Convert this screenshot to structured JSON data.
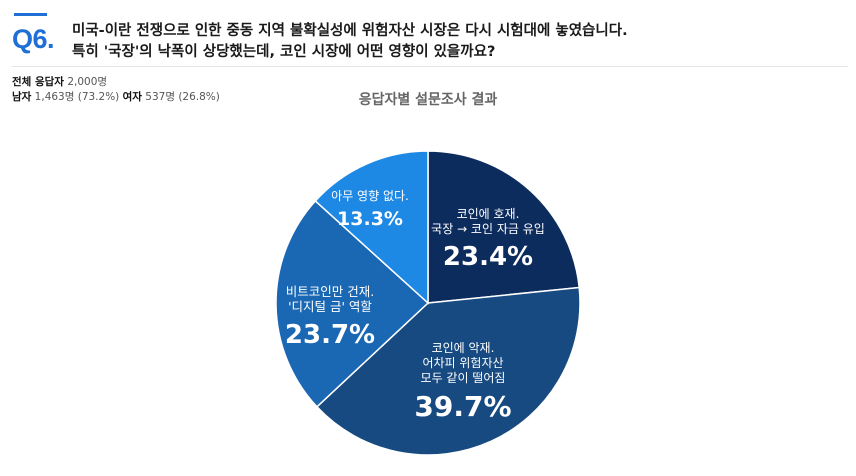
{
  "question": {
    "number": "Q6.",
    "line1": "미국-이란 전쟁으로 인한 중동 지역 불확실성에 위험자산 시장은 다시 시험대에 놓였습니다.",
    "line2": "특히 '국장'의 낙폭이 상당했는데, 코인 시장에 어떤 영향이 있을까요?"
  },
  "respondents": {
    "total_label": "전체 응답자",
    "total_value": "2,000명",
    "male_label": "남자",
    "male_value": "1,463명 (73.2%)",
    "female_label": "여자",
    "female_value": "537명 (26.8%)"
  },
  "chart_data": {
    "type": "pie",
    "title": "응답자별 설문조사 결과",
    "slices": [
      {
        "label_lines": [
          "코인에 호재.",
          "국장 → 코인 자금 유입"
        ],
        "value": 23.4,
        "value_text": "23.4%",
        "color": "#0d2c5e"
      },
      {
        "label_lines": [
          "코인에 악재.",
          "어차피 위험자산",
          "모두 같이 떨어짐"
        ],
        "value": 39.7,
        "value_text": "39.7%",
        "color": "#164a80"
      },
      {
        "label_lines": [
          "비트코인만 건재.",
          "'디지털 금' 역할"
        ],
        "value": 23.7,
        "value_text": "23.7%",
        "color": "#1a67b3"
      },
      {
        "label_lines": [
          "아무 영향 없다."
        ],
        "value": 13.3,
        "value_text": "13.3%",
        "color": "#1e88e5"
      }
    ]
  }
}
